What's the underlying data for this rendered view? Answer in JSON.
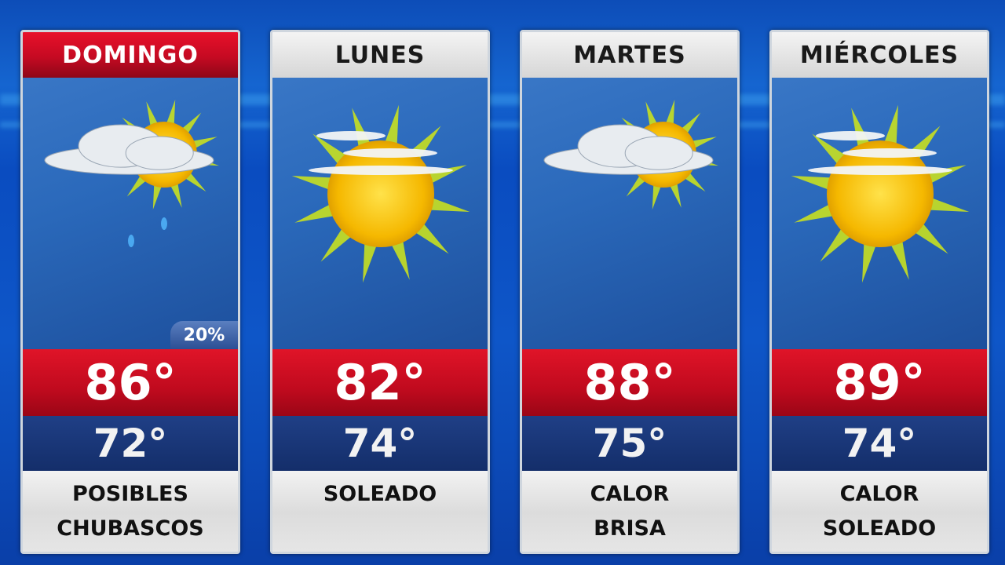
{
  "days": [
    {
      "name": "DOMINGO",
      "active": true,
      "icon": "sun-cloud-rain-icon",
      "precip": "20%",
      "high": "86°",
      "low": "72°",
      "line1": "POSIBLES",
      "line2": "CHUBASCOS"
    },
    {
      "name": "LUNES",
      "active": false,
      "icon": "sunny-thin-clouds-icon",
      "high": "82°",
      "low": "74°",
      "line1": "SOLEADO",
      "line2": ""
    },
    {
      "name": "MARTES",
      "active": false,
      "icon": "partly-cloudy-icon",
      "high": "88°",
      "low": "75°",
      "line1": "CALOR",
      "line2": "BRISA"
    },
    {
      "name": "MIÉRCOLES",
      "active": false,
      "icon": "sunny-thin-clouds-icon",
      "high": "89°",
      "low": "74°",
      "line1": "CALOR",
      "line2": "SOLEADO"
    }
  ],
  "colors": {
    "header_active": "#d40f25",
    "high_band": "#c00a1e",
    "low_band": "#1a3678",
    "background": "#0d4db8"
  }
}
